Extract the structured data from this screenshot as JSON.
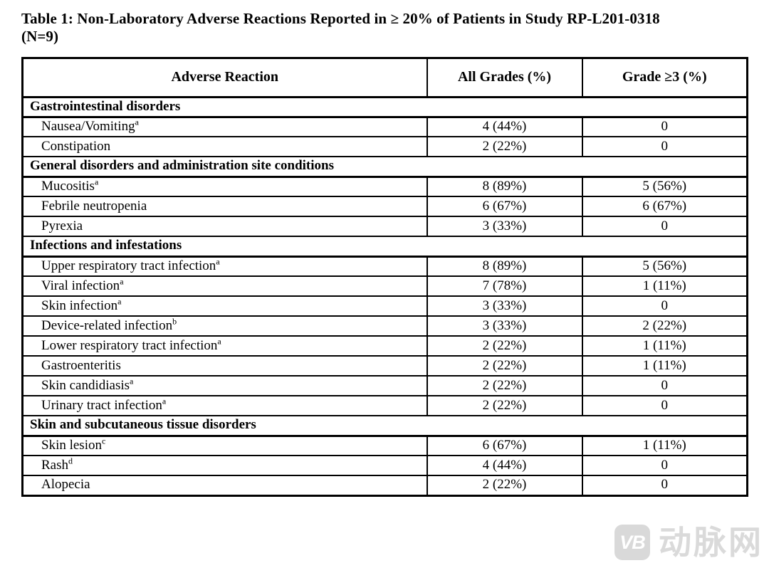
{
  "title": {
    "line1": "Table 1: Non-Laboratory Adverse Reactions Reported in ≥ 20% of Patients in Study RP-L201-0318",
    "line2": "(N=9)"
  },
  "table": {
    "columns": [
      "Adverse Reaction",
      "All Grades (%)",
      "Grade ≥3 (%)"
    ],
    "sections": [
      {
        "header": "Gastrointestinal disorders",
        "rows": [
          {
            "name": "Nausea/Vomiting",
            "sup": "a",
            "all_grades": "4 (44%)",
            "grade3": "0"
          },
          {
            "name": "Constipation",
            "sup": "",
            "all_grades": "2 (22%)",
            "grade3": "0"
          }
        ]
      },
      {
        "header": "General disorders and administration site conditions",
        "rows": [
          {
            "name": "Mucositis",
            "sup": "a",
            "all_grades": "8 (89%)",
            "grade3": "5 (56%)"
          },
          {
            "name": "Febrile neutropenia",
            "sup": "",
            "all_grades": "6 (67%)",
            "grade3": "6 (67%)"
          },
          {
            "name": "Pyrexia",
            "sup": "",
            "all_grades": "3 (33%)",
            "grade3": "0"
          }
        ]
      },
      {
        "header": "Infections and infestations",
        "rows": [
          {
            "name": "Upper respiratory tract infection",
            "sup": "a",
            "all_grades": "8 (89%)",
            "grade3": "5 (56%)"
          },
          {
            "name": "Viral infection",
            "sup": "a",
            "all_grades": "7 (78%)",
            "grade3": "1 (11%)"
          },
          {
            "name": "Skin infection",
            "sup": "a",
            "all_grades": "3 (33%)",
            "grade3": "0"
          },
          {
            "name": "Device-related infection",
            "sup": "b",
            "all_grades": "3 (33%)",
            "grade3": "2 (22%)"
          },
          {
            "name": "Lower respiratory tract infection",
            "sup": "a",
            "all_grades": "2 (22%)",
            "grade3": "1 (11%)"
          },
          {
            "name": "Gastroenteritis",
            "sup": "",
            "all_grades": "2 (22%)",
            "grade3": "1 (11%)"
          },
          {
            "name": "Skin candidiasis",
            "sup": "a",
            "all_grades": "2 (22%)",
            "grade3": "0"
          },
          {
            "name": "Urinary tract infection",
            "sup": "a",
            "all_grades": "2 (22%)",
            "grade3": "0"
          }
        ]
      },
      {
        "header": "Skin and subcutaneous tissue disorders",
        "rows": [
          {
            "name": "Skin lesion",
            "sup": "c",
            "all_grades": "6 (67%)",
            "grade3": "1 (11%)"
          },
          {
            "name": "Rash",
            "sup": "d",
            "all_grades": "4 (44%)",
            "grade3": "0"
          },
          {
            "name": "Alopecia",
            "sup": "",
            "all_grades": "2 (22%)",
            "grade3": "0"
          }
        ]
      }
    ]
  },
  "watermark": {
    "logo_text": "VB",
    "brand_text": "动脉网",
    "color": "#dadada"
  }
}
